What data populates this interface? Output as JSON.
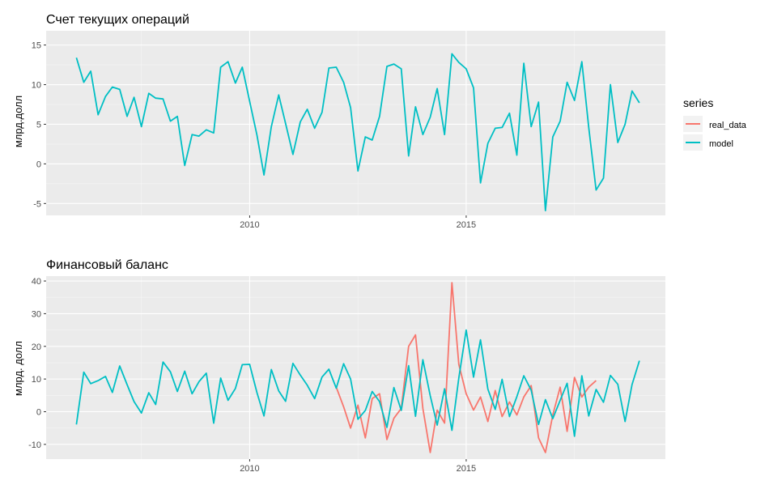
{
  "legend": {
    "title": "series",
    "entries": [
      {
        "name": "real_data",
        "color": "#F8766D"
      },
      {
        "name": "model",
        "color": "#00BFC4"
      }
    ]
  },
  "chart_data": [
    {
      "type": "line",
      "title": "Счет текущих операций",
      "ylabel": "млрд.долл",
      "xlabel": "",
      "xlim": [
        2005.3,
        2019.6
      ],
      "ylim": [
        -6.5,
        16.8
      ],
      "x_ticks": [
        2010,
        2015
      ],
      "y_ticks": [
        -5,
        0,
        5,
        10,
        15
      ],
      "grid": true,
      "series": [
        {
          "name": "model",
          "color": "#00BFC4",
          "points": [
            [
              2006.0,
              13.4
            ],
            [
              2006.17,
              10.3
            ],
            [
              2006.33,
              11.7
            ],
            [
              2006.5,
              6.2
            ],
            [
              2006.67,
              8.5
            ],
            [
              2006.83,
              9.7
            ],
            [
              2007.0,
              9.4
            ],
            [
              2007.17,
              6.0
            ],
            [
              2007.33,
              8.4
            ],
            [
              2007.5,
              4.7
            ],
            [
              2007.67,
              8.9
            ],
            [
              2007.83,
              8.3
            ],
            [
              2008.0,
              8.2
            ],
            [
              2008.17,
              5.4
            ],
            [
              2008.33,
              6.0
            ],
            [
              2008.5,
              -0.2
            ],
            [
              2008.67,
              3.7
            ],
            [
              2008.83,
              3.5
            ],
            [
              2009.0,
              4.3
            ],
            [
              2009.17,
              3.9
            ],
            [
              2009.33,
              12.2
            ],
            [
              2009.5,
              12.9
            ],
            [
              2009.67,
              10.2
            ],
            [
              2009.83,
              12.2
            ],
            [
              2010.0,
              7.9
            ],
            [
              2010.17,
              3.6
            ],
            [
              2010.33,
              -1.4
            ],
            [
              2010.5,
              4.7
            ],
            [
              2010.67,
              8.7
            ],
            [
              2010.83,
              5.1
            ],
            [
              2011.0,
              1.2
            ],
            [
              2011.17,
              5.3
            ],
            [
              2011.33,
              6.9
            ],
            [
              2011.5,
              4.5
            ],
            [
              2011.67,
              6.5
            ],
            [
              2011.83,
              12.1
            ],
            [
              2012.0,
              12.2
            ],
            [
              2012.17,
              10.3
            ],
            [
              2012.33,
              7.1
            ],
            [
              2012.5,
              -0.9
            ],
            [
              2012.67,
              3.4
            ],
            [
              2012.83,
              3.0
            ],
            [
              2013.0,
              6.0
            ],
            [
              2013.17,
              12.3
            ],
            [
              2013.33,
              12.6
            ],
            [
              2013.5,
              12.0
            ],
            [
              2013.67,
              1.0
            ],
            [
              2013.83,
              7.2
            ],
            [
              2014.0,
              3.7
            ],
            [
              2014.17,
              5.9
            ],
            [
              2014.33,
              9.5
            ],
            [
              2014.5,
              3.7
            ],
            [
              2014.67,
              13.9
            ],
            [
              2014.83,
              12.8
            ],
            [
              2015.0,
              12.0
            ],
            [
              2015.17,
              9.6
            ],
            [
              2015.33,
              -2.4
            ],
            [
              2015.5,
              2.6
            ],
            [
              2015.67,
              4.5
            ],
            [
              2015.83,
              4.6
            ],
            [
              2016.0,
              6.4
            ],
            [
              2016.17,
              1.1
            ],
            [
              2016.33,
              12.7
            ],
            [
              2016.5,
              4.7
            ],
            [
              2016.67,
              7.8
            ],
            [
              2016.83,
              -5.9
            ],
            [
              2017.0,
              3.4
            ],
            [
              2017.17,
              5.4
            ],
            [
              2017.33,
              10.3
            ],
            [
              2017.5,
              8.0
            ],
            [
              2017.67,
              12.9
            ],
            [
              2017.83,
              4.6
            ],
            [
              2018.0,
              -3.3
            ],
            [
              2018.17,
              -1.8
            ],
            [
              2018.33,
              10.0
            ],
            [
              2018.5,
              2.7
            ],
            [
              2018.67,
              5.0
            ],
            [
              2018.83,
              9.2
            ],
            [
              2019.0,
              7.7
            ]
          ]
        }
      ]
    },
    {
      "type": "line",
      "title": "Финансовый баланс",
      "ylabel": "млрд. долл",
      "xlabel": "",
      "xlim": [
        2005.3,
        2019.6
      ],
      "ylim": [
        -14.5,
        41.5
      ],
      "x_ticks": [
        2010,
        2015
      ],
      "y_ticks": [
        -10,
        0,
        10,
        20,
        30,
        40
      ],
      "grid": true,
      "series": [
        {
          "name": "model",
          "color": "#00BFC4",
          "points": [
            [
              2006.0,
              -3.9
            ],
            [
              2006.17,
              12.1
            ],
            [
              2006.33,
              8.6
            ],
            [
              2006.5,
              9.5
            ],
            [
              2006.67,
              10.8
            ],
            [
              2006.83,
              5.9
            ],
            [
              2007.0,
              14.0
            ],
            [
              2007.17,
              8.3
            ],
            [
              2007.33,
              3.1
            ],
            [
              2007.5,
              -0.4
            ],
            [
              2007.67,
              5.8
            ],
            [
              2007.83,
              2.2
            ],
            [
              2008.0,
              15.2
            ],
            [
              2008.17,
              12.2
            ],
            [
              2008.33,
              6.2
            ],
            [
              2008.5,
              12.4
            ],
            [
              2008.67,
              5.5
            ],
            [
              2008.83,
              9.2
            ],
            [
              2009.0,
              11.8
            ],
            [
              2009.17,
              -3.5
            ],
            [
              2009.33,
              10.3
            ],
            [
              2009.5,
              3.5
            ],
            [
              2009.67,
              7.1
            ],
            [
              2009.83,
              14.4
            ],
            [
              2010.0,
              14.5
            ],
            [
              2010.17,
              5.8
            ],
            [
              2010.33,
              -1.3
            ],
            [
              2010.5,
              12.9
            ],
            [
              2010.67,
              6.4
            ],
            [
              2010.83,
              3.2
            ],
            [
              2011.0,
              14.8
            ],
            [
              2011.17,
              11.2
            ],
            [
              2011.33,
              8.1
            ],
            [
              2011.5,
              4.0
            ],
            [
              2011.67,
              10.6
            ],
            [
              2011.83,
              13.0
            ],
            [
              2012.0,
              7.2
            ],
            [
              2012.17,
              14.7
            ],
            [
              2012.33,
              10.0
            ],
            [
              2012.5,
              -2.3
            ],
            [
              2012.67,
              0.4
            ],
            [
              2012.83,
              6.2
            ],
            [
              2013.0,
              3.1
            ],
            [
              2013.17,
              -4.8
            ],
            [
              2013.33,
              7.4
            ],
            [
              2013.5,
              0.4
            ],
            [
              2013.67,
              14.1
            ],
            [
              2013.83,
              -1.4
            ],
            [
              2014.0,
              15.9
            ],
            [
              2014.17,
              4.9
            ],
            [
              2014.33,
              -4.1
            ],
            [
              2014.5,
              7.0
            ],
            [
              2014.67,
              -5.7
            ],
            [
              2014.83,
              10.3
            ],
            [
              2015.0,
              25.0
            ],
            [
              2015.17,
              10.6
            ],
            [
              2015.33,
              22.0
            ],
            [
              2015.5,
              6.9
            ],
            [
              2015.67,
              0.7
            ],
            [
              2015.83,
              9.9
            ],
            [
              2016.0,
              -1.5
            ],
            [
              2016.17,
              4.6
            ],
            [
              2016.33,
              11.0
            ],
            [
              2016.5,
              6.6
            ],
            [
              2016.67,
              -3.9
            ],
            [
              2016.83,
              3.7
            ],
            [
              2017.0,
              -2.1
            ],
            [
              2017.17,
              3.5
            ],
            [
              2017.33,
              8.7
            ],
            [
              2017.5,
              -7.5
            ],
            [
              2017.67,
              11.0
            ],
            [
              2017.83,
              -1.3
            ],
            [
              2018.0,
              6.8
            ],
            [
              2018.17,
              2.9
            ],
            [
              2018.33,
              11.1
            ],
            [
              2018.5,
              8.4
            ],
            [
              2018.67,
              -3.0
            ],
            [
              2018.83,
              8.3
            ],
            [
              2019.0,
              15.6
            ]
          ]
        },
        {
          "name": "real_data",
          "color": "#F8766D",
          "points": [
            [
              2012.0,
              7.5
            ],
            [
              2012.17,
              1.5
            ],
            [
              2012.33,
              -5.0
            ],
            [
              2012.5,
              2.0
            ],
            [
              2012.67,
              -8.0
            ],
            [
              2012.83,
              4.0
            ],
            [
              2013.0,
              5.5
            ],
            [
              2013.17,
              -8.5
            ],
            [
              2013.33,
              -2.0
            ],
            [
              2013.5,
              1.0
            ],
            [
              2013.67,
              20.0
            ],
            [
              2013.83,
              23.5
            ],
            [
              2014.0,
              1.0
            ],
            [
              2014.17,
              -12.5
            ],
            [
              2014.33,
              0.5
            ],
            [
              2014.5,
              -3.5
            ],
            [
              2014.67,
              39.5
            ],
            [
              2014.83,
              14.5
            ],
            [
              2015.0,
              5.5
            ],
            [
              2015.17,
              0.5
            ],
            [
              2015.33,
              4.5
            ],
            [
              2015.5,
              -3.0
            ],
            [
              2015.67,
              6.5
            ],
            [
              2015.83,
              -1.5
            ],
            [
              2016.0,
              3.0
            ],
            [
              2016.17,
              -1.0
            ],
            [
              2016.33,
              4.5
            ],
            [
              2016.5,
              8.0
            ],
            [
              2016.67,
              -8.0
            ],
            [
              2016.83,
              -12.5
            ],
            [
              2017.0,
              -1.0
            ],
            [
              2017.17,
              7.5
            ],
            [
              2017.33,
              -6.0
            ],
            [
              2017.5,
              10.5
            ],
            [
              2017.67,
              4.5
            ],
            [
              2017.83,
              7.5
            ],
            [
              2018.0,
              9.5
            ]
          ]
        }
      ]
    }
  ]
}
